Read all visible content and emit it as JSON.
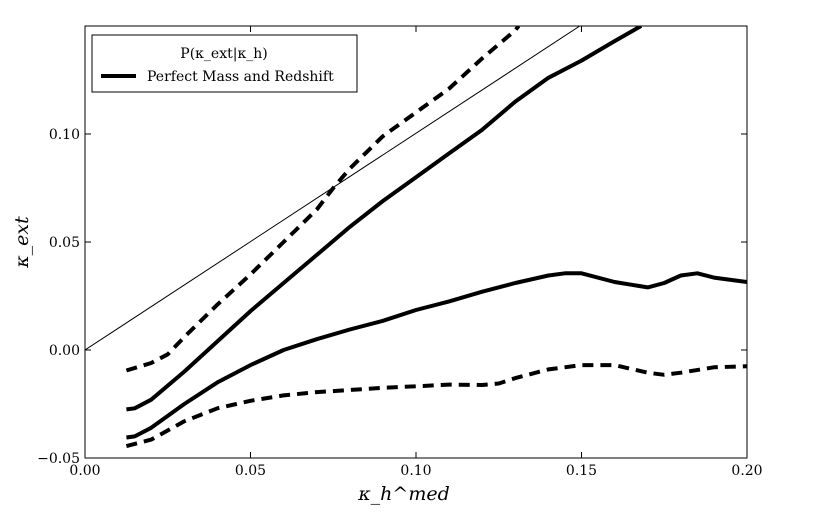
{
  "chart_data": {
    "type": "line",
    "title": "",
    "xlabel": "κ_h^med",
    "ylabel": "κ_ext",
    "xlim": [
      0.0,
      0.2
    ],
    "ylim": [
      -0.05,
      0.15
    ],
    "xticks": [
      "0.00",
      "0.05",
      "0.10",
      "0.15",
      "0.20"
    ],
    "yticks": [
      "−0.05",
      "0.00",
      "0.05",
      "0.10"
    ],
    "xtick_values": [
      0.0,
      0.05,
      0.1,
      0.15,
      0.2
    ],
    "ytick_values": [
      -0.05,
      0.0,
      0.05,
      0.1
    ],
    "grid": false,
    "legend": {
      "placement": "top-left",
      "title": "P(κ_ext|κ_h)",
      "entries": [
        "Perfect Mass and Redshift"
      ]
    },
    "series": [
      {
        "name": "identity",
        "style": "thin-solid",
        "x": [
          0.0,
          0.1495
        ],
        "y": [
          0.0,
          0.15
        ]
      },
      {
        "name": "upper-dashed",
        "style": "dashed",
        "x": [
          0.0125,
          0.02,
          0.025,
          0.03,
          0.04,
          0.05,
          0.06,
          0.07,
          0.075,
          0.08,
          0.09,
          0.1,
          0.11,
          0.12,
          0.13,
          0.131
        ],
        "y": [
          -0.0095,
          -0.006,
          -0.002,
          0.006,
          0.021,
          0.035,
          0.05,
          0.065,
          0.075,
          0.084,
          0.099,
          0.11,
          0.121,
          0.135,
          0.148,
          0.15
        ]
      },
      {
        "name": "Perfect Mass and Redshift (upper)",
        "style": "thick-solid",
        "x": [
          0.0125,
          0.015,
          0.02,
          0.03,
          0.04,
          0.05,
          0.06,
          0.07,
          0.08,
          0.09,
          0.1,
          0.11,
          0.12,
          0.13,
          0.14,
          0.15,
          0.16,
          0.168
        ],
        "y": [
          -0.0275,
          -0.027,
          -0.023,
          -0.01,
          0.004,
          0.018,
          0.031,
          0.044,
          0.057,
          0.069,
          0.08,
          0.091,
          0.102,
          0.115,
          0.126,
          0.134,
          0.143,
          0.15
        ]
      },
      {
        "name": "Perfect Mass and Redshift (lower)",
        "style": "thick-solid",
        "x": [
          0.0125,
          0.015,
          0.02,
          0.03,
          0.04,
          0.05,
          0.06,
          0.07,
          0.08,
          0.09,
          0.1,
          0.11,
          0.12,
          0.13,
          0.14,
          0.145,
          0.15,
          0.16,
          0.17,
          0.175,
          0.18,
          0.185,
          0.19,
          0.2
        ],
        "y": [
          -0.0405,
          -0.04,
          -0.036,
          -0.025,
          -0.015,
          -0.007,
          0.0,
          0.005,
          0.0095,
          0.0135,
          0.0185,
          0.0225,
          0.027,
          0.031,
          0.0345,
          0.0355,
          0.0355,
          0.0315,
          0.029,
          0.031,
          0.0345,
          0.0355,
          0.0335,
          0.0315
        ]
      },
      {
        "name": "lower-dashed",
        "style": "dashed",
        "x": [
          0.0125,
          0.02,
          0.03,
          0.04,
          0.05,
          0.06,
          0.07,
          0.08,
          0.09,
          0.1,
          0.11,
          0.12,
          0.125,
          0.13,
          0.14,
          0.15,
          0.16,
          0.17,
          0.175,
          0.18,
          0.19,
          0.2
        ],
        "y": [
          -0.0445,
          -0.0415,
          -0.033,
          -0.027,
          -0.0235,
          -0.021,
          -0.0195,
          -0.0185,
          -0.0175,
          -0.0168,
          -0.016,
          -0.0162,
          -0.0155,
          -0.013,
          -0.009,
          -0.007,
          -0.007,
          -0.0105,
          -0.0115,
          -0.0105,
          -0.008,
          -0.0075
        ]
      }
    ]
  }
}
